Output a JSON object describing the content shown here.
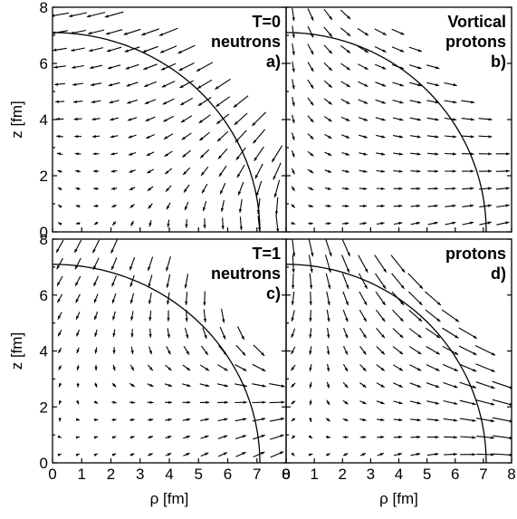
{
  "chart_data": [
    {
      "type": "vector-field",
      "panel": "a",
      "labels": [
        "T=0",
        "neutrons",
        "a)"
      ],
      "xlabel": "",
      "ylabel": "z [fm]",
      "xlim": [
        0,
        8
      ],
      "ylim": [
        0,
        8
      ],
      "xticks": [
        "0",
        "1",
        "2",
        "3",
        "4",
        "5",
        "6",
        "7",
        "8"
      ],
      "yticks": [
        "0",
        "2",
        "4",
        "6",
        "8"
      ],
      "show_xticks": false,
      "surface": {
        "rho_radius": 7.1,
        "z_radius": 7.1
      },
      "field": "t0_neutrons"
    },
    {
      "type": "vector-field",
      "panel": "b",
      "labels": [
        "Vortical",
        "protons",
        "b)"
      ],
      "xlabel": "",
      "ylabel": "",
      "xlim": [
        0,
        8
      ],
      "ylim": [
        0,
        8
      ],
      "xticks": [
        "0",
        "1",
        "2",
        "3",
        "4",
        "5",
        "6",
        "7",
        "8"
      ],
      "yticks": [
        "0",
        "2",
        "4",
        "6",
        "8"
      ],
      "show_xticks": false,
      "surface": {
        "rho_radius": 7.1,
        "z_radius": 7.1
      },
      "field": "t0_protons"
    },
    {
      "type": "vector-field",
      "panel": "c",
      "labels": [
        "T=1",
        "neutrons",
        "c)"
      ],
      "xlabel": "ρ [fm]",
      "ylabel": "z [fm]",
      "xlim": [
        0,
        8
      ],
      "ylim": [
        0,
        8
      ],
      "xticks": [
        "0",
        "1",
        "2",
        "3",
        "4",
        "5",
        "6",
        "7",
        "8"
      ],
      "yticks": [
        "0",
        "2",
        "4",
        "6",
        "8"
      ],
      "show_xticks": true,
      "surface": {
        "rho_radius": 7.1,
        "z_radius": 7.1
      },
      "field": "t1_neutrons"
    },
    {
      "type": "vector-field",
      "panel": "d",
      "labels": [
        "protons",
        "d)"
      ],
      "xlabel": "ρ [fm]",
      "ylabel": "",
      "xlim": [
        0,
        8
      ],
      "ylim": [
        0,
        8
      ],
      "xticks": [
        "0",
        "1",
        "2",
        "3",
        "4",
        "5",
        "6",
        "7",
        "8"
      ],
      "yticks": [
        "0",
        "2",
        "4",
        "6",
        "8"
      ],
      "show_xticks": true,
      "surface": {
        "rho_radius": 7.1,
        "z_radius": 7.1
      },
      "field": "t1_protons"
    }
  ]
}
